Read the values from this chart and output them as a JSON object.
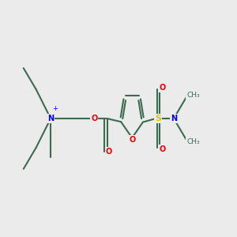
{
  "background_color": "#ebebeb",
  "bond_color": "#3d6b52",
  "bond_width": 1.5,
  "N_color": "#0000ee",
  "O_color": "#ee0000",
  "S_color": "#cccc00",
  "label_fontsize": 7.0,
  "figsize": [
    3.0,
    3.0
  ],
  "dpi": 100,
  "xlim": [
    0,
    12
  ],
  "ylim": [
    3,
    9
  ]
}
